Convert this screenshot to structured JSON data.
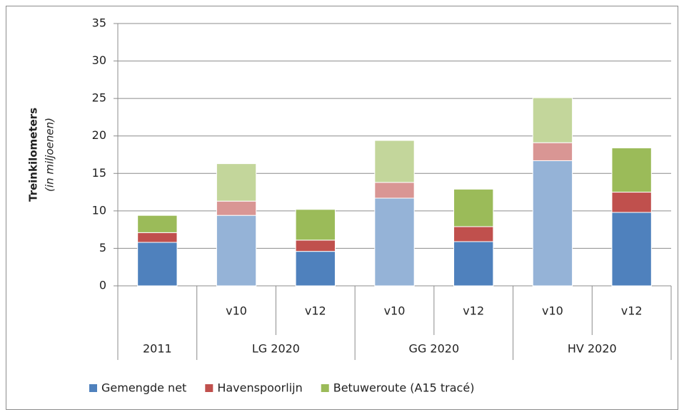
{
  "chart_data": {
    "type": "stacked_bar",
    "ylabel": "Treinkilometers",
    "ylabel_sub": "(in miljoenen)",
    "categories": [
      null,
      "v10",
      "v12",
      "v10",
      "v12",
      "v10",
      "v12"
    ],
    "groups": [
      {
        "label": "2011",
        "span": 1
      },
      {
        "label": "LG 2020",
        "span": 2
      },
      {
        "label": "GG 2020",
        "span": 2
      },
      {
        "label": "HV 2020",
        "span": 2
      }
    ],
    "series": [
      {
        "name": "Gemengde net",
        "color": "#4f81bd",
        "colors": [
          "#4f81bd",
          "#95b3d7",
          "#4f81bd",
          "#95b3d7",
          "#4f81bd",
          "#95b3d7",
          "#4f81bd"
        ],
        "values": [
          5.8,
          9.4,
          4.6,
          11.7,
          5.9,
          16.7,
          9.8
        ]
      },
      {
        "name": "Havenspoorlijn",
        "color": "#c0504d",
        "colors": [
          "#c0504d",
          "#d99694",
          "#c0504d",
          "#d99694",
          "#c0504d",
          "#d99694",
          "#c0504d"
        ],
        "values": [
          1.3,
          1.9,
          1.5,
          2.1,
          2.0,
          2.4,
          2.7
        ]
      },
      {
        "name": "Betuweroute (A15 tracé)",
        "color": "#9bbb59",
        "colors": [
          "#9bbb59",
          "#c3d69b",
          "#9bbb59",
          "#c3d69b",
          "#9bbb59",
          "#c3d69b",
          "#9bbb59"
        ],
        "values": [
          2.3,
          5.0,
          4.1,
          5.6,
          5.0,
          6.0,
          5.9
        ]
      }
    ],
    "ylim": [
      0,
      35
    ],
    "yticks": [
      0,
      5,
      10,
      15,
      20,
      25,
      30,
      35
    ],
    "grid": true,
    "legend": "bottom"
  }
}
